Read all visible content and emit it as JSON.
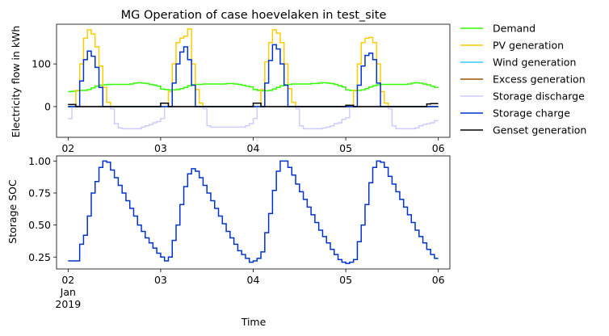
{
  "chart_data": [
    {
      "type": "line",
      "drawstyle": "steps-post",
      "title": "MG Operation of case hoevelaken in test_site",
      "xlabel": "",
      "ylabel": "Electricity flow in kWh",
      "x_start": "2019-01-02 00:00",
      "x_step_hours": 1,
      "xlim": [
        "2019-01-01 21:00",
        "2019-01-06 03:00"
      ],
      "ylim": [
        -72,
        193
      ],
      "yticks": [
        0,
        100
      ],
      "xticks": [
        {
          "date": "2019-01-02",
          "label": "02"
        },
        {
          "date": "2019-01-03",
          "label": "03"
        },
        {
          "date": "2019-01-04",
          "label": "04"
        },
        {
          "date": "2019-01-05",
          "label": "05"
        },
        {
          "date": "2019-01-06",
          "label": "06"
        }
      ],
      "legend": "outside-right",
      "grid": false,
      "series": [
        {
          "name": "Demand",
          "color": "#33ff00",
          "values": [
            35,
            36,
            37,
            38,
            38,
            40,
            44,
            48,
            50,
            51,
            52,
            52,
            52,
            52,
            52,
            52,
            53,
            55,
            56,
            55,
            54,
            52,
            50,
            48,
            41,
            40,
            39,
            39,
            40,
            42,
            45,
            49,
            51,
            52,
            52,
            53,
            53,
            53,
            53,
            53,
            53,
            54,
            54,
            53,
            52,
            50,
            48,
            46,
            40,
            38,
            37,
            37,
            38,
            41,
            45,
            49,
            51,
            52,
            53,
            53,
            53,
            53,
            53,
            54,
            54,
            55,
            56,
            55,
            54,
            52,
            49,
            46,
            39,
            38,
            37,
            38,
            39,
            42,
            46,
            49,
            51,
            52,
            52,
            52,
            52,
            52,
            52,
            52,
            53,
            55,
            56,
            55,
            53,
            51,
            48,
            45
          ]
        },
        {
          "name": "PV generation",
          "color": "#ffcc00",
          "values": [
            0,
            0,
            38,
            100,
            160,
            180,
            170,
            140,
            95,
            45,
            10,
            0,
            0,
            0,
            0,
            0,
            0,
            0,
            0,
            0,
            0,
            0,
            0,
            0,
            0,
            0,
            35,
            100,
            150,
            160,
            165,
            182,
            100,
            40,
            8,
            0,
            0,
            0,
            0,
            0,
            0,
            0,
            0,
            0,
            0,
            0,
            0,
            0,
            0,
            0,
            40,
            105,
            150,
            180,
            172,
            150,
            100,
            42,
            10,
            0,
            0,
            0,
            0,
            0,
            0,
            0,
            0,
            0,
            0,
            0,
            0,
            0,
            0,
            0,
            38,
            100,
            150,
            160,
            162,
            150,
            100,
            35,
            8,
            0,
            0,
            0,
            0,
            0,
            0,
            0,
            0,
            0,
            0,
            0,
            0,
            0
          ]
        },
        {
          "name": "Wind generation",
          "color": "#33ccff",
          "values": [
            0,
            0,
            0,
            0,
            0,
            0,
            0,
            0,
            0,
            0,
            0,
            0,
            0,
            0,
            0,
            0,
            0,
            0,
            0,
            0,
            0,
            0,
            0,
            0,
            0,
            0,
            0,
            0,
            0,
            0,
            0,
            0,
            0,
            0,
            0,
            0,
            0,
            0,
            0,
            0,
            0,
            0,
            0,
            0,
            0,
            0,
            0,
            0,
            0,
            0,
            0,
            0,
            0,
            0,
            0,
            0,
            0,
            0,
            0,
            0,
            0,
            0,
            0,
            0,
            0,
            0,
            0,
            0,
            0,
            0,
            0,
            0,
            0,
            0,
            0,
            0,
            0,
            0,
            0,
            0,
            0,
            0,
            0,
            0,
            0,
            0,
            0,
            0,
            0,
            0,
            0,
            0,
            0,
            0,
            0,
            0
          ]
        },
        {
          "name": "Excess generation",
          "color": "#995500",
          "values": [
            0,
            0,
            0,
            0,
            0,
            0,
            0,
            0,
            0,
            0,
            0,
            0,
            0,
            0,
            0,
            0,
            0,
            0,
            0,
            0,
            0,
            0,
            0,
            0,
            0,
            0,
            0,
            0,
            0,
            0,
            0,
            0,
            0,
            0,
            0,
            0,
            0,
            0,
            0,
            0,
            0,
            0,
            0,
            0,
            0,
            0,
            0,
            0,
            0,
            0,
            0,
            0,
            0,
            0,
            0,
            0,
            0,
            0,
            0,
            0,
            0,
            0,
            0,
            0,
            0,
            0,
            0,
            0,
            0,
            0,
            0,
            0,
            0,
            0,
            0,
            0,
            0,
            0,
            0,
            0,
            0,
            0,
            0,
            0,
            0,
            0,
            0,
            0,
            0,
            0,
            0,
            0,
            0,
            0,
            0,
            0
          ]
        },
        {
          "name": "Storage discharge",
          "color": "#ccccff",
          "values": [
            -28,
            0,
            0,
            0,
            0,
            0,
            0,
            0,
            0,
            0,
            0,
            -5,
            -40,
            -50,
            -52,
            -52,
            -52,
            -52,
            -52,
            -48,
            -45,
            -42,
            -38,
            -35,
            -28,
            0,
            0,
            0,
            0,
            0,
            0,
            0,
            0,
            0,
            0,
            -5,
            -45,
            -48,
            -48,
            -48,
            -48,
            -48,
            -48,
            -48,
            -48,
            -48,
            -45,
            -40,
            -28,
            0,
            0,
            0,
            0,
            0,
            0,
            0,
            0,
            0,
            0,
            -5,
            -45,
            -52,
            -52,
            -52,
            -52,
            -52,
            -50,
            -48,
            -45,
            -40,
            -38,
            -30,
            -26,
            0,
            0,
            0,
            0,
            0,
            0,
            0,
            0,
            0,
            0,
            -5,
            -45,
            -52,
            -52,
            -52,
            -52,
            -52,
            -50,
            -45,
            -42,
            -40,
            -38,
            -33
          ]
        },
        {
          "name": "Storage charge",
          "color": "#0033cc",
          "values": [
            0,
            0,
            0,
            60,
            110,
            130,
            118,
            92,
            45,
            0,
            0,
            0,
            0,
            0,
            0,
            0,
            0,
            0,
            0,
            0,
            0,
            0,
            0,
            0,
            0,
            0,
            0,
            55,
            100,
            128,
            140,
            110,
            50,
            0,
            0,
            0,
            0,
            0,
            0,
            0,
            0,
            0,
            0,
            0,
            0,
            0,
            0,
            0,
            0,
            0,
            0,
            55,
            108,
            145,
            135,
            100,
            50,
            0,
            0,
            0,
            0,
            0,
            0,
            0,
            0,
            0,
            0,
            0,
            0,
            0,
            0,
            0,
            0,
            0,
            0,
            50,
            95,
            120,
            125,
            110,
            55,
            0,
            0,
            0,
            0,
            0,
            0,
            0,
            0,
            0,
            0,
            0,
            0,
            0,
            0,
            0
          ]
        },
        {
          "name": "Genset generation",
          "color": "#000000",
          "values": [
            5,
            5,
            0,
            0,
            0,
            0,
            0,
            0,
            0,
            0,
            0,
            0,
            0,
            0,
            0,
            0,
            0,
            0,
            0,
            0,
            0,
            0,
            0,
            0,
            8,
            8,
            0,
            0,
            0,
            0,
            0,
            0,
            0,
            0,
            0,
            0,
            0,
            0,
            0,
            0,
            0,
            0,
            0,
            0,
            0,
            0,
            0,
            0,
            8,
            8,
            0,
            0,
            0,
            0,
            0,
            0,
            0,
            0,
            0,
            0,
            0,
            0,
            0,
            0,
            0,
            0,
            0,
            0,
            0,
            0,
            0,
            0,
            3,
            3,
            0,
            0,
            0,
            0,
            0,
            0,
            0,
            0,
            0,
            0,
            0,
            0,
            0,
            0,
            0,
            0,
            0,
            0,
            0,
            6,
            7,
            7
          ]
        }
      ]
    },
    {
      "type": "line",
      "drawstyle": "steps-post",
      "title": "",
      "xlabel": "Time",
      "ylabel": "Storage SOC",
      "x_start": "2019-01-02 00:00",
      "x_step_hours": 1,
      "xlim": [
        "2019-01-01 21:00",
        "2019-01-06 03:00"
      ],
      "ylim": [
        0.157,
        1.04
      ],
      "yticks": [
        0.25,
        0.5,
        0.75,
        1.0
      ],
      "ytick_labels": [
        "0.25",
        "0.50",
        "0.75",
        "1.00"
      ],
      "xticks": [
        {
          "date": "2019-01-02",
          "label": "02",
          "sub": [
            "Jan",
            "2019"
          ]
        },
        {
          "date": "2019-01-03",
          "label": "03"
        },
        {
          "date": "2019-01-04",
          "label": "04"
        },
        {
          "date": "2019-01-05",
          "label": "05"
        },
        {
          "date": "2019-01-06",
          "label": "06"
        }
      ],
      "grid": false,
      "series": [
        {
          "name": "",
          "color": "#0033cc",
          "values": [
            0.22,
            0.22,
            0.22,
            0.35,
            0.42,
            0.57,
            0.75,
            0.84,
            0.95,
            1.0,
            0.99,
            0.93,
            0.87,
            0.81,
            0.75,
            0.69,
            0.63,
            0.57,
            0.5,
            0.45,
            0.4,
            0.36,
            0.32,
            0.28,
            0.25,
            0.22,
            0.25,
            0.38,
            0.5,
            0.66,
            0.8,
            0.9,
            0.94,
            0.92,
            0.87,
            0.81,
            0.75,
            0.69,
            0.63,
            0.57,
            0.51,
            0.45,
            0.4,
            0.35,
            0.3,
            0.27,
            0.24,
            0.21,
            0.22,
            0.24,
            0.29,
            0.44,
            0.59,
            0.77,
            0.92,
            1.0,
            1.0,
            0.95,
            0.89,
            0.82,
            0.76,
            0.7,
            0.64,
            0.58,
            0.52,
            0.46,
            0.41,
            0.36,
            0.31,
            0.27,
            0.23,
            0.21,
            0.2,
            0.21,
            0.23,
            0.37,
            0.5,
            0.66,
            0.83,
            0.95,
            1.0,
            0.99,
            0.95,
            0.88,
            0.82,
            0.76,
            0.7,
            0.64,
            0.58,
            0.52,
            0.46,
            0.41,
            0.36,
            0.31,
            0.27,
            0.24
          ]
        }
      ]
    }
  ]
}
